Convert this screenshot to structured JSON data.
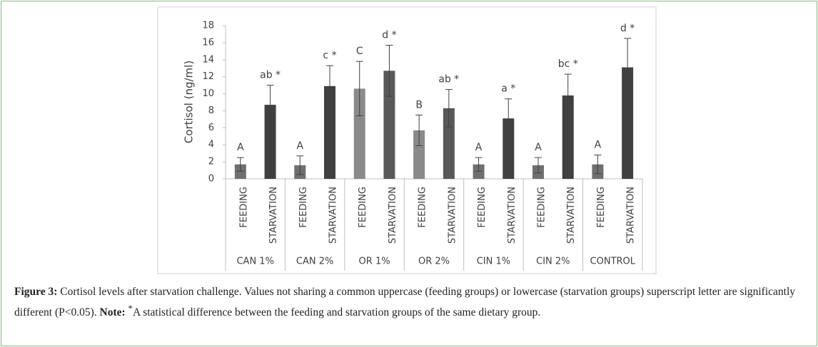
{
  "chart_data": {
    "type": "bar",
    "ylabel": "Cortisol (ng/ml)",
    "groups": [
      "CAN 1%",
      "CAN 2%",
      "OR 1%",
      "OR 2%",
      "CIN 1%",
      "CIN 2%",
      "CONTROL"
    ],
    "categories": [
      "FEEDING",
      "STARVATION",
      "FEEDING",
      "STARVATION",
      "FEEDING",
      "STARVATION",
      "FEEDING",
      "STARVATION",
      "FEEDING",
      "STARVATION",
      "FEEDING",
      "STARVATION",
      "FEEDING",
      "STARVATION"
    ],
    "values": [
      1.7,
      8.7,
      1.6,
      10.9,
      10.6,
      12.7,
      5.7,
      8.3,
      1.7,
      7.1,
      1.6,
      9.8,
      1.7,
      13.1
    ],
    "errors": [
      0.8,
      2.3,
      1.1,
      2.4,
      3.2,
      3.0,
      1.8,
      2.2,
      0.8,
      2.3,
      0.9,
      2.5,
      1.1,
      3.4
    ],
    "annotations": [
      "A",
      "ab *",
      "A",
      "c *",
      "C",
      "d *",
      "B",
      "ab *",
      "A",
      "a *",
      "A",
      "bc *",
      "A",
      "d *"
    ],
    "colors": [
      "#6f6f6f",
      "#404040",
      "#6f6f6f",
      "#404040",
      "#8a8a8a",
      "#595959",
      "#8a8a8a",
      "#595959",
      "#6f6f6f",
      "#404040",
      "#6f6f6f",
      "#404040",
      "#6f6f6f",
      "#404040"
    ],
    "ylim": [
      0,
      18
    ],
    "yticks": [
      0,
      2,
      4,
      6,
      8,
      10,
      12,
      14,
      16,
      18
    ],
    "grid": false
  },
  "caption": {
    "label": "Figure 3:",
    "text": "Cortisol levels after starvation challenge. Values not sharing a common uppercase (feeding groups) or lowercase (starvation groups) superscript letter are significantly different (P<0.05).",
    "note_label": "Note:",
    "note_mark": "*",
    "note_text": "A statistical difference between the feeding and starvation groups of the same dietary group."
  }
}
